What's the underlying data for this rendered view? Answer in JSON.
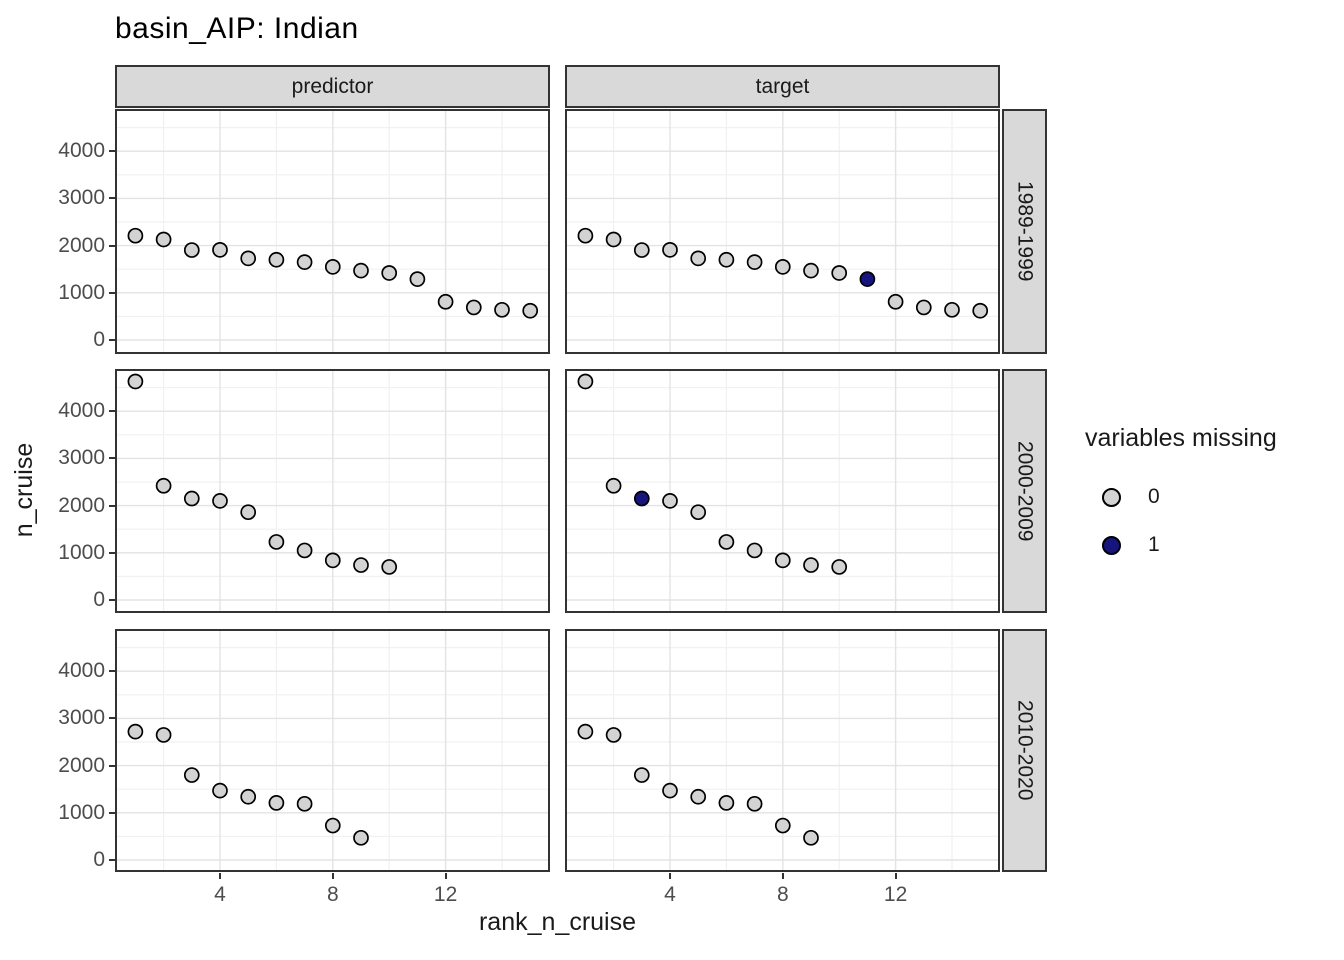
{
  "title": "basin_AIP: Indian",
  "chart_data": {
    "type": "scatter",
    "title": "basin_AIP: Indian",
    "xlabel": "rank_n_cruise",
    "ylabel": "n_cruise",
    "x_ticks": [
      4,
      8,
      12
    ],
    "y_ticks": [
      0,
      1000,
      2000,
      3000,
      4000
    ],
    "xlim": [
      0.3,
      15.7
    ],
    "ylim": [
      -300,
      4900
    ],
    "grid": "major and minor gridlines on, light gray",
    "legend": {
      "title": "variables missing",
      "position": "right",
      "items": [
        {
          "label": "0",
          "color": "#d3d3d3"
        },
        {
          "label": "1",
          "color": "#15157d"
        }
      ]
    },
    "facets": {
      "columns": [
        "predictor",
        "target"
      ],
      "rows": [
        "1989-1999",
        "2000-2009",
        "2010-2020"
      ]
    },
    "rows": [
      {
        "row_label": "1989-1999",
        "x": [
          1,
          2,
          3,
          4,
          5,
          6,
          7,
          8,
          9,
          10,
          11,
          12,
          13,
          14,
          15
        ],
        "n_cruise": [
          2210,
          2130,
          1905,
          1910,
          1730,
          1700,
          1650,
          1550,
          1470,
          1420,
          1290,
          810,
          690,
          640,
          620
        ],
        "missing": {
          "predictor": [
            0,
            0,
            0,
            0,
            0,
            0,
            0,
            0,
            0,
            0,
            0,
            0,
            0,
            0,
            0
          ],
          "target": [
            0,
            0,
            0,
            0,
            0,
            0,
            0,
            0,
            0,
            0,
            1,
            0,
            0,
            0,
            0
          ]
        }
      },
      {
        "row_label": "2000-2009",
        "x": [
          1,
          2,
          3,
          4,
          5,
          6,
          7,
          8,
          9,
          10
        ],
        "n_cruise": [
          4630,
          2420,
          2150,
          2100,
          1860,
          1230,
          1050,
          840,
          740,
          700
        ],
        "missing": {
          "predictor": [
            0,
            0,
            0,
            0,
            0,
            0,
            0,
            0,
            0,
            0
          ],
          "target": [
            0,
            0,
            1,
            0,
            0,
            0,
            0,
            0,
            0,
            0
          ]
        }
      },
      {
        "row_label": "2010-2020",
        "x": [
          1,
          2,
          3,
          4,
          5,
          6,
          7,
          8,
          9
        ],
        "n_cruise": [
          2720,
          2650,
          1800,
          1470,
          1340,
          1210,
          1190,
          730,
          470
        ],
        "missing": {
          "predictor": [
            0,
            0,
            0,
            0,
            0,
            0,
            0,
            0,
            0
          ],
          "target": [
            0,
            0,
            0,
            0,
            0,
            0,
            0,
            0,
            0
          ]
        }
      }
    ]
  },
  "colors": {
    "strip_bg": "#d9d9d9",
    "strip_border": "#333333",
    "panel_border": "#333333",
    "grid_major": "#e3e3e3",
    "grid_minor": "#f1f1f1",
    "point_stroke": "#000000",
    "tick_mark": "#333333",
    "tick_label": "#4d4d4d"
  }
}
